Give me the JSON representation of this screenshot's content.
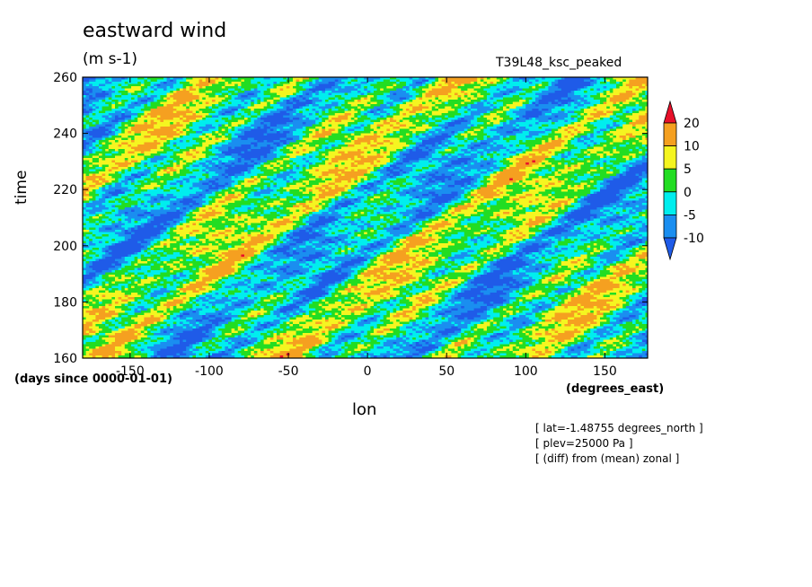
{
  "chart_data": {
    "type": "heatmap",
    "title": "eastward wind",
    "units": "(m s-1)",
    "run_name": "T39L48_ksc_peaked",
    "xlabel": "lon",
    "x_units": "(degrees_east)",
    "ylabel": "time",
    "y_units": "(days since 0000-01-01)",
    "xlim": [
      -180,
      177
    ],
    "ylim": [
      160,
      260
    ],
    "x_ticks": [
      "-150",
      "-100",
      "-50",
      "0",
      "50",
      "100",
      "150"
    ],
    "x_tick_values": [
      -150,
      -100,
      -50,
      0,
      50,
      100,
      150
    ],
    "y_ticks": [
      "160",
      "180",
      "200",
      "220",
      "240",
      "260"
    ],
    "y_tick_values": [
      160,
      180,
      200,
      220,
      240,
      260
    ],
    "colorbar": {
      "levels": [
        "20",
        "10",
        "5",
        "0",
        "-5",
        "-10"
      ],
      "level_values": [
        20,
        10,
        5,
        0,
        -5,
        -10
      ],
      "colors": [
        "#e8102a",
        "#f5a020",
        "#f5f520",
        "#22dd22",
        "#00eeee",
        "#1a8ef0",
        "#1f5be8"
      ]
    },
    "notes": [
      "[ lat=-1.48755 degrees_north ]",
      "[ plev=25000 Pa ]",
      "[ (diff) from (mean) zonal ]"
    ]
  }
}
